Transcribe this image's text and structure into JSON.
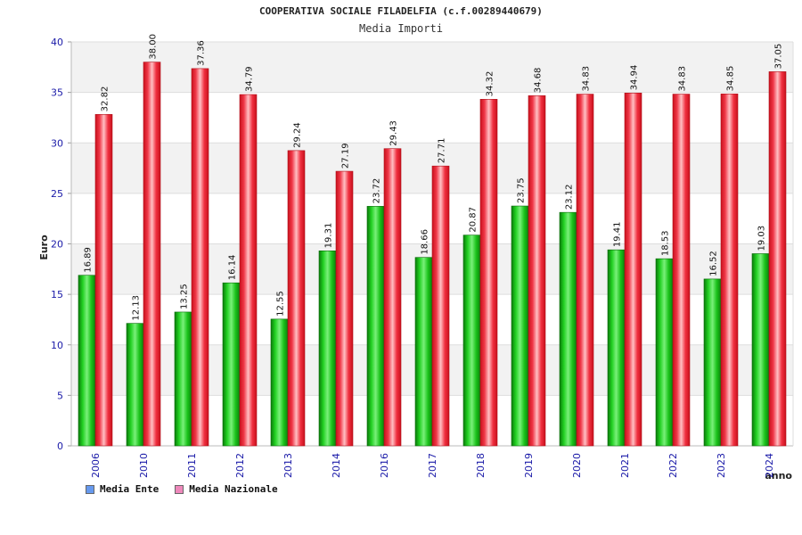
{
  "chart_data": {
    "type": "bar",
    "title": "COOPERATIVA SOCIALE FILADELFIA (c.f.00289440679)",
    "subtitle": "Media Importi",
    "xlabel": "anno",
    "ylabel": "Euro",
    "ylim": [
      0,
      40
    ],
    "yticks": [
      0,
      5,
      10,
      15,
      20,
      25,
      30,
      35,
      40
    ],
    "grid": true,
    "legend_position": "bottom-left",
    "categories": [
      "2006",
      "2010",
      "2011",
      "2012",
      "2013",
      "2014",
      "2016",
      "2017",
      "2018",
      "2019",
      "2020",
      "2021",
      "2022",
      "2023",
      "2024"
    ],
    "series": [
      {
        "name": "Media Ente",
        "color": "#13b313",
        "legend_color": "#6699ee",
        "values": [
          16.89,
          12.13,
          13.25,
          16.14,
          12.55,
          19.31,
          23.72,
          18.66,
          20.87,
          23.75,
          23.12,
          19.41,
          18.53,
          16.52,
          19.03
        ],
        "labels": [
          "16.89",
          "12.13",
          "13.25",
          "16.14",
          "12.55",
          "19.31",
          "23.72",
          "18.66",
          "20.87",
          "23.75",
          "23.12",
          "19.41",
          "18.53",
          "16.52",
          "19.03"
        ]
      },
      {
        "name": "Media Nazionale",
        "color": "#ee1c2a",
        "legend_color": "#ee88bb",
        "values": [
          32.82,
          38.0,
          37.36,
          34.79,
          29.24,
          27.19,
          29.43,
          27.71,
          34.32,
          34.68,
          34.83,
          34.94,
          34.83,
          34.85,
          37.05
        ],
        "labels": [
          "32.82",
          "38.00",
          "37.36",
          "34.79",
          "29.24",
          "27.19",
          "29.43",
          "27.71",
          "34.32",
          "34.68",
          "34.83",
          "34.94",
          "34.83",
          "34.85",
          "37.05"
        ]
      }
    ]
  }
}
